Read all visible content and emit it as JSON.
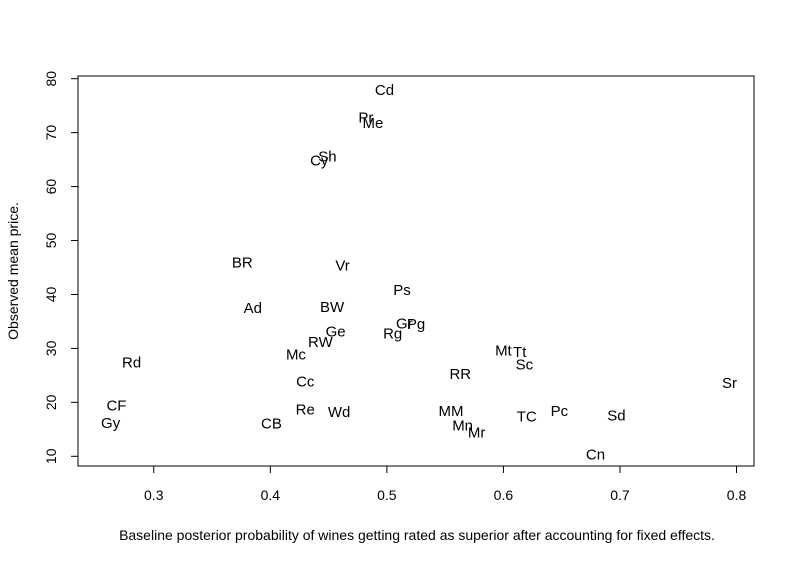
{
  "chart_data": {
    "type": "scatter",
    "title": "",
    "xlabel": "Baseline posterior probability of wines getting rated as superior after accounting for fixed effects.",
    "ylabel": "Observed mean price.",
    "xlim": [
      0.235,
      0.815
    ],
    "ylim": [
      8.2,
      80.5
    ],
    "x_ticks": [
      0.3,
      0.4,
      0.5,
      0.6,
      0.7,
      0.8
    ],
    "x_tick_labels": [
      "0.3",
      "0.4",
      "0.5",
      "0.6",
      "0.7",
      "0.8"
    ],
    "y_ticks": [
      10,
      20,
      30,
      40,
      50,
      60,
      70,
      80
    ],
    "y_tick_labels": [
      "10",
      "20",
      "30",
      "40",
      "50",
      "60",
      "70",
      "80"
    ],
    "grid": false,
    "marker": "text-label",
    "points": [
      {
        "label": "Cd",
        "x": 0.498,
        "y": 77.9
      },
      {
        "label": "Pr",
        "x": 0.482,
        "y": 72.8
      },
      {
        "label": "Me",
        "x": 0.488,
        "y": 71.8
      },
      {
        "label": "Sh",
        "x": 0.449,
        "y": 65.6
      },
      {
        "label": "Cy",
        "x": 0.442,
        "y": 64.8
      },
      {
        "label": "BR",
        "x": 0.376,
        "y": 45.9
      },
      {
        "label": "Vr",
        "x": 0.462,
        "y": 45.4
      },
      {
        "label": "Ps",
        "x": 0.513,
        "y": 40.8
      },
      {
        "label": "Ad",
        "x": 0.385,
        "y": 37.5
      },
      {
        "label": "BW",
        "x": 0.453,
        "y": 37.7
      },
      {
        "label": "Gr",
        "x": 0.515,
        "y": 34.6
      },
      {
        "label": "Pg",
        "x": 0.525,
        "y": 34.5
      },
      {
        "label": "Ge",
        "x": 0.456,
        "y": 33.1
      },
      {
        "label": "Rg",
        "x": 0.505,
        "y": 32.8
      },
      {
        "label": "RW",
        "x": 0.443,
        "y": 31.2
      },
      {
        "label": "Mt",
        "x": 0.6,
        "y": 29.6
      },
      {
        "label": "Tt",
        "x": 0.614,
        "y": 29.3
      },
      {
        "label": "Mc",
        "x": 0.422,
        "y": 28.9
      },
      {
        "label": "Rd",
        "x": 0.281,
        "y": 27.4
      },
      {
        "label": "Sc",
        "x": 0.618,
        "y": 27.0
      },
      {
        "label": "RR",
        "x": 0.563,
        "y": 25.3
      },
      {
        "label": "Cc",
        "x": 0.43,
        "y": 23.9
      },
      {
        "label": "Sr",
        "x": 0.794,
        "y": 23.6
      },
      {
        "label": "CF",
        "x": 0.268,
        "y": 19.4
      },
      {
        "label": "Re",
        "x": 0.43,
        "y": 18.7
      },
      {
        "label": "Wd",
        "x": 0.459,
        "y": 18.2
      },
      {
        "label": "MM",
        "x": 0.555,
        "y": 18.4
      },
      {
        "label": "Pc",
        "x": 0.648,
        "y": 18.4
      },
      {
        "label": "Sd",
        "x": 0.697,
        "y": 17.6
      },
      {
        "label": "TC",
        "x": 0.62,
        "y": 17.4
      },
      {
        "label": "Gy",
        "x": 0.263,
        "y": 16.2
      },
      {
        "label": "CB",
        "x": 0.401,
        "y": 16.1
      },
      {
        "label": "Mn",
        "x": 0.565,
        "y": 15.7
      },
      {
        "label": "Mr",
        "x": 0.577,
        "y": 14.4
      },
      {
        "label": "Cn",
        "x": 0.679,
        "y": 10.3
      }
    ]
  }
}
